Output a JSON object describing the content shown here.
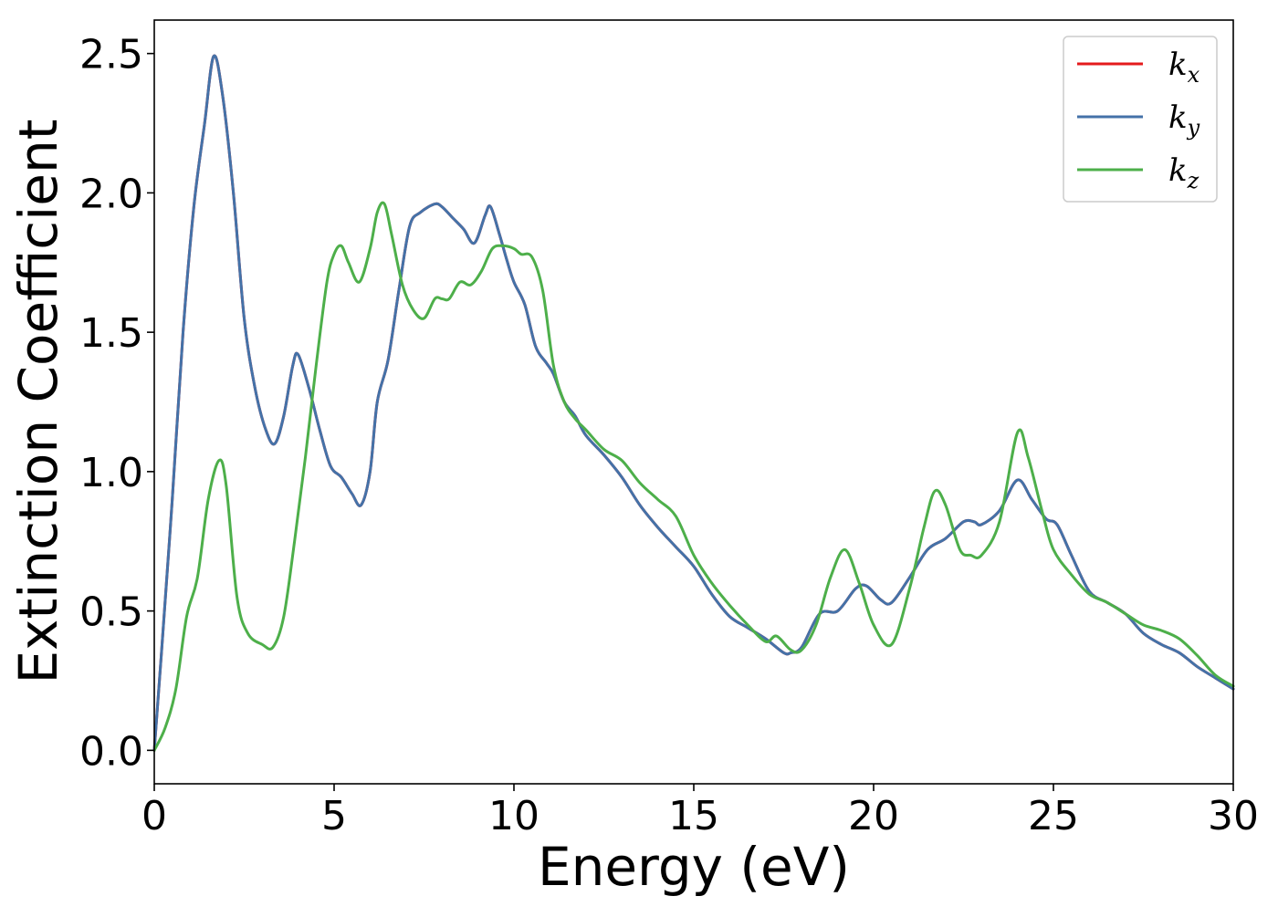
{
  "chart_data": {
    "type": "line",
    "xlabel": "Energy (eV)",
    "ylabel": "Extinction Coefficient",
    "xlim": [
      0,
      30
    ],
    "ylim": [
      -0.12,
      2.62
    ],
    "xticks": [
      0,
      5,
      10,
      15,
      20,
      25,
      30
    ],
    "yticks": [
      0.0,
      0.5,
      1.0,
      1.5,
      2.0,
      2.5
    ],
    "xtick_labels": [
      "0",
      "5",
      "10",
      "15",
      "20",
      "25",
      "30"
    ],
    "ytick_labels": [
      "0.0",
      "0.5",
      "1.0",
      "1.5",
      "2.0",
      "2.5"
    ],
    "grid": false,
    "legend_position": "top-right",
    "series": [
      {
        "name": "k_x",
        "legend_base": "k",
        "legend_sub": "x",
        "color": "#e41a1c",
        "x": [
          0,
          0.2,
          0.5,
          0.8,
          1.1,
          1.4,
          1.65,
          1.9,
          2.2,
          2.5,
          2.8,
          3.1,
          3.35,
          3.6,
          3.85,
          4.0,
          4.3,
          4.6,
          4.9,
          5.2,
          5.5,
          5.75,
          6.0,
          6.2,
          6.5,
          6.8,
          7.1,
          7.4,
          7.8,
          8.0,
          8.3,
          8.6,
          8.9,
          9.2,
          9.35,
          9.6,
          9.8,
          10.0,
          10.3,
          10.6,
          10.9,
          11.1,
          11.4,
          11.7,
          12.0,
          12.5,
          13.0,
          13.5,
          14.0,
          14.5,
          15.0,
          15.5,
          16.0,
          16.5,
          17.0,
          17.5,
          17.7,
          18.0,
          18.5,
          19.0,
          19.5,
          19.8,
          20.2,
          20.5,
          21.0,
          21.5,
          22.0,
          22.5,
          22.8,
          23.0,
          23.5,
          24.0,
          24.4,
          24.8,
          25.1,
          25.5,
          26.0,
          26.5,
          27.0,
          27.5,
          28.0,
          28.5,
          29.0,
          29.5,
          30.0
        ],
        "y": [
          0.0,
          0.35,
          0.9,
          1.5,
          1.95,
          2.25,
          2.49,
          2.35,
          2.0,
          1.55,
          1.3,
          1.15,
          1.1,
          1.2,
          1.38,
          1.42,
          1.3,
          1.15,
          1.02,
          0.98,
          0.92,
          0.88,
          1.0,
          1.25,
          1.4,
          1.65,
          1.88,
          1.93,
          1.96,
          1.95,
          1.91,
          1.87,
          1.82,
          1.92,
          1.95,
          1.85,
          1.76,
          1.68,
          1.6,
          1.45,
          1.39,
          1.35,
          1.25,
          1.2,
          1.13,
          1.06,
          0.98,
          0.88,
          0.8,
          0.73,
          0.66,
          0.56,
          0.48,
          0.44,
          0.4,
          0.35,
          0.35,
          0.37,
          0.49,
          0.5,
          0.58,
          0.59,
          0.54,
          0.53,
          0.62,
          0.72,
          0.76,
          0.82,
          0.82,
          0.81,
          0.86,
          0.97,
          0.9,
          0.83,
          0.81,
          0.7,
          0.57,
          0.53,
          0.49,
          0.42,
          0.38,
          0.35,
          0.3,
          0.26,
          0.22
        ]
      },
      {
        "name": "k_y",
        "legend_base": "k",
        "legend_sub": "y",
        "color": "#4472a8",
        "x": [
          0,
          0.2,
          0.5,
          0.8,
          1.1,
          1.4,
          1.65,
          1.9,
          2.2,
          2.5,
          2.8,
          3.1,
          3.35,
          3.6,
          3.85,
          4.0,
          4.3,
          4.6,
          4.9,
          5.2,
          5.5,
          5.75,
          6.0,
          6.2,
          6.5,
          6.8,
          7.1,
          7.4,
          7.8,
          8.0,
          8.3,
          8.6,
          8.9,
          9.2,
          9.35,
          9.6,
          9.8,
          10.0,
          10.3,
          10.6,
          10.9,
          11.1,
          11.4,
          11.7,
          12.0,
          12.5,
          13.0,
          13.5,
          14.0,
          14.5,
          15.0,
          15.5,
          16.0,
          16.5,
          17.0,
          17.5,
          17.7,
          18.0,
          18.5,
          19.0,
          19.5,
          19.8,
          20.2,
          20.5,
          21.0,
          21.5,
          22.0,
          22.5,
          22.8,
          23.0,
          23.5,
          24.0,
          24.4,
          24.8,
          25.1,
          25.5,
          26.0,
          26.5,
          27.0,
          27.5,
          28.0,
          28.5,
          29.0,
          29.5,
          30.0
        ],
        "y": [
          0.0,
          0.35,
          0.9,
          1.5,
          1.95,
          2.25,
          2.49,
          2.35,
          2.0,
          1.55,
          1.3,
          1.15,
          1.1,
          1.2,
          1.38,
          1.42,
          1.3,
          1.15,
          1.02,
          0.98,
          0.92,
          0.88,
          1.0,
          1.25,
          1.4,
          1.65,
          1.88,
          1.93,
          1.96,
          1.95,
          1.91,
          1.87,
          1.82,
          1.92,
          1.95,
          1.85,
          1.76,
          1.68,
          1.6,
          1.45,
          1.39,
          1.35,
          1.25,
          1.2,
          1.13,
          1.06,
          0.98,
          0.88,
          0.8,
          0.73,
          0.66,
          0.56,
          0.48,
          0.44,
          0.4,
          0.35,
          0.35,
          0.37,
          0.49,
          0.5,
          0.58,
          0.59,
          0.54,
          0.53,
          0.62,
          0.72,
          0.76,
          0.82,
          0.82,
          0.81,
          0.86,
          0.97,
          0.9,
          0.83,
          0.81,
          0.7,
          0.57,
          0.53,
          0.49,
          0.42,
          0.38,
          0.35,
          0.3,
          0.26,
          0.22
        ]
      },
      {
        "name": "k_z",
        "legend_base": "k",
        "legend_sub": "z",
        "color": "#4daf4a",
        "x": [
          0,
          0.3,
          0.6,
          0.9,
          1.2,
          1.5,
          1.8,
          2.0,
          2.3,
          2.6,
          3.0,
          3.3,
          3.6,
          3.9,
          4.2,
          4.5,
          4.8,
          5.0,
          5.2,
          5.4,
          5.7,
          6.0,
          6.2,
          6.4,
          6.6,
          6.9,
          7.2,
          7.5,
          7.8,
          8.0,
          8.2,
          8.5,
          8.8,
          9.1,
          9.4,
          9.7,
          10.0,
          10.2,
          10.5,
          10.8,
          11.1,
          11.4,
          11.7,
          12.0,
          12.5,
          13.0,
          13.5,
          14.0,
          14.5,
          15.0,
          15.5,
          16.0,
          16.5,
          17.0,
          17.3,
          17.7,
          18.0,
          18.4,
          18.8,
          19.2,
          19.6,
          20.0,
          20.5,
          21.0,
          21.4,
          21.7,
          22.0,
          22.4,
          22.7,
          23.0,
          23.5,
          24.0,
          24.3,
          24.7,
          25.0,
          25.5,
          26.0,
          26.5,
          27.0,
          27.5,
          28.0,
          28.5,
          29.0,
          29.5,
          30.0
        ],
        "y": [
          0.0,
          0.08,
          0.22,
          0.48,
          0.62,
          0.9,
          1.04,
          0.95,
          0.55,
          0.42,
          0.38,
          0.37,
          0.48,
          0.75,
          1.05,
          1.38,
          1.68,
          1.78,
          1.81,
          1.75,
          1.68,
          1.8,
          1.93,
          1.96,
          1.85,
          1.67,
          1.58,
          1.55,
          1.62,
          1.62,
          1.62,
          1.68,
          1.67,
          1.72,
          1.8,
          1.81,
          1.8,
          1.78,
          1.77,
          1.65,
          1.38,
          1.25,
          1.19,
          1.15,
          1.08,
          1.04,
          0.96,
          0.9,
          0.84,
          0.7,
          0.6,
          0.52,
          0.45,
          0.39,
          0.41,
          0.36,
          0.36,
          0.45,
          0.62,
          0.72,
          0.6,
          0.45,
          0.38,
          0.58,
          0.8,
          0.93,
          0.88,
          0.72,
          0.7,
          0.7,
          0.82,
          1.14,
          1.05,
          0.85,
          0.72,
          0.63,
          0.56,
          0.53,
          0.49,
          0.45,
          0.43,
          0.4,
          0.34,
          0.27,
          0.23
        ]
      }
    ]
  }
}
